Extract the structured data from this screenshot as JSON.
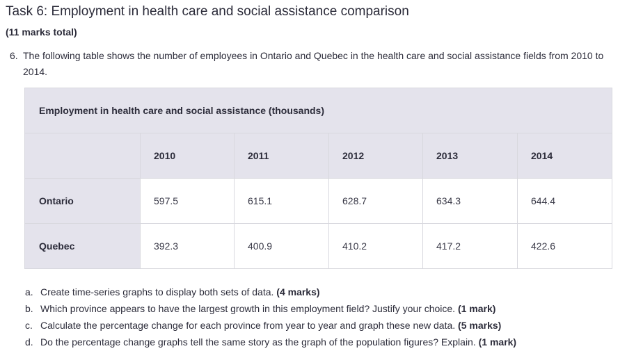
{
  "task": {
    "title": "Task 6: Employment in health care and social assistance comparison",
    "marks_total": "(11 marks total)"
  },
  "question": {
    "number": "6.",
    "text": "The following table shows the number of employees in Ontario and Quebec in the health care and social assistance fields from 2010 to 2014."
  },
  "table": {
    "caption": "Employment in health care and social assistance (thousands)",
    "columns": [
      "",
      "2010",
      "2011",
      "2012",
      "2013",
      "2014"
    ],
    "rows": [
      {
        "label": "Ontario",
        "values": [
          "597.5",
          "615.1",
          "628.7",
          "634.3",
          "644.4"
        ]
      },
      {
        "label": "Quebec",
        "values": [
          "392.3",
          "400.9",
          "410.2",
          "417.2",
          "422.6"
        ]
      }
    ]
  },
  "sub_questions": [
    {
      "letter": "a.",
      "text": "Create time-series graphs to display both sets of data. ",
      "marks": "(4 marks)"
    },
    {
      "letter": "b.",
      "text": "Which province appears to have the largest growth in this employment field? Justify your choice. ",
      "marks": "(1 mark)"
    },
    {
      "letter": "c.",
      "text": "Calculate the percentage change for each province from year to year and graph these new data. ",
      "marks": "(5 marks)"
    },
    {
      "letter": "d.",
      "text": "Do the percentage change graphs tell the same story as the graph of the population figures? Explain. ",
      "marks": "(1 mark)"
    }
  ]
}
